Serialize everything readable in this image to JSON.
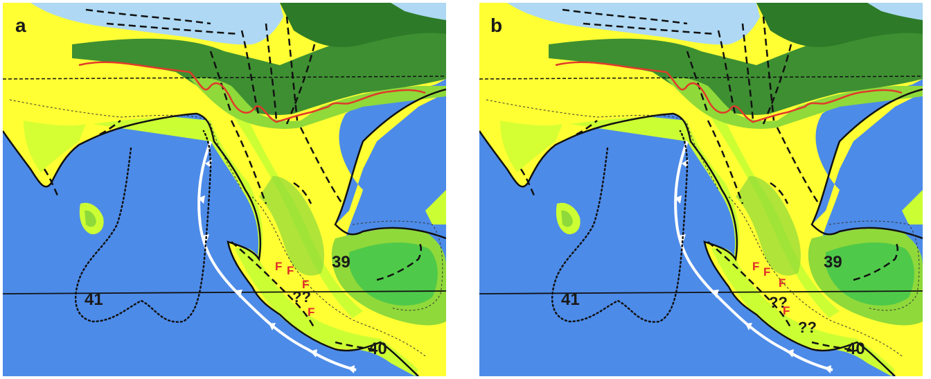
{
  "colors": {
    "ocean": "#4d8be8",
    "shallow_sea": "#aed8f3",
    "lowland_yellow": "#ffff33",
    "light_green": "#ccff33",
    "mid_green": "#8fd93a",
    "dark_green": "#4da53a",
    "forest_green": "#3e8f32",
    "red_line": "#e03a2a",
    "subduction_line": "#ffffff"
  },
  "legend_icons": {
    "red_boundary": "red-boundary-line",
    "subduction": "subduction-teeth-line",
    "dotted_outline": "dotted-outline",
    "fossil_marker": "fossil-f-marker"
  },
  "panels": [
    {
      "letter": "a",
      "labels": {
        "region_39": "39",
        "region_40": "40",
        "region_41": "41",
        "unknown_1": "??"
      },
      "markers": [
        "F",
        "F",
        "F",
        "F"
      ]
    },
    {
      "letter": "b",
      "labels": {
        "region_39": "39",
        "region_40": "40",
        "region_41": "41",
        "unknown_1": "??",
        "unknown_2": "??"
      },
      "markers": [
        "F",
        "F",
        "F",
        "F"
      ]
    }
  ]
}
